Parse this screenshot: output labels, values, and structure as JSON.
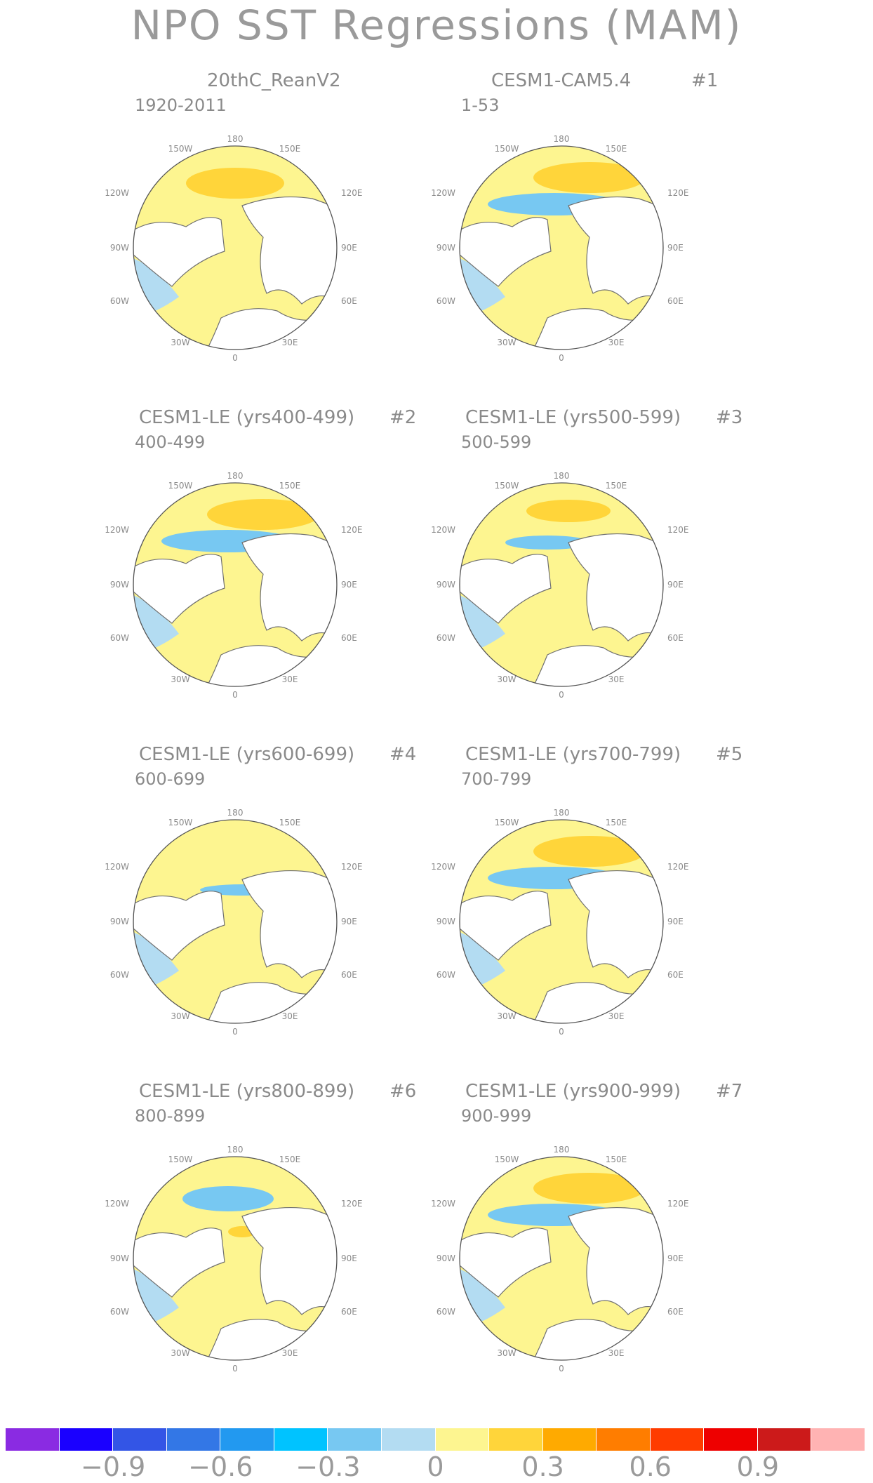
{
  "title": "NPO SST Regressions (MAM)",
  "panels": [
    {
      "title": "20thC_ReanV2",
      "id": "",
      "period": "1920-2011",
      "pattern": "obs"
    },
    {
      "title": "CESM1-CAM5.4",
      "id": "#1",
      "period": "1-53",
      "pattern": "strong"
    },
    {
      "title": "CESM1-LE (yrs400-499)",
      "id": "#2",
      "period": "400-499",
      "pattern": "strong"
    },
    {
      "title": "CESM1-LE (yrs500-599)",
      "id": "#3",
      "period": "500-599",
      "pattern": "moderate"
    },
    {
      "title": "CESM1-LE (yrs600-699)",
      "id": "#4",
      "period": "600-699",
      "pattern": "weak"
    },
    {
      "title": "CESM1-LE (yrs700-799)",
      "id": "#5",
      "period": "700-799",
      "pattern": "strong"
    },
    {
      "title": "CESM1-LE (yrs800-899)",
      "id": "#6",
      "period": "800-899",
      "pattern": "reversed"
    },
    {
      "title": "CESM1-LE (yrs900-999)",
      "id": "#7",
      "period": "900-999",
      "pattern": "strong"
    }
  ],
  "map_labels": {
    "lon_180": "180",
    "lon_150w": "150W",
    "lon_150e": "150E",
    "lon_120w": "120W",
    "lon_120e": "120E",
    "lon_90w": "90W",
    "lon_90e": "90E",
    "lon_60w": "60W",
    "lon_60e": "60E",
    "lon_30w": "30W",
    "lon_30e": "30E",
    "lon_0": "0"
  },
  "colorbar": {
    "colors": [
      "#8a2be2",
      "#1a00ff",
      "#3355e6",
      "#3377e6",
      "#2299f0",
      "#00c3ff",
      "#77c8f2",
      "#b3dcf2",
      "#fdf590",
      "#ffd53a",
      "#ffaa00",
      "#ff7d00",
      "#ff3c00",
      "#ee0000",
      "#cc1a1a",
      "#ffb3b3"
    ],
    "labels": [
      "−0.9",
      "−0.6",
      "−0.3",
      "0",
      "0.3",
      "0.6",
      "0.9"
    ]
  }
}
